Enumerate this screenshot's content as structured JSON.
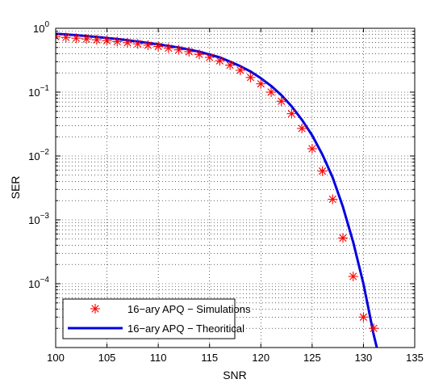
{
  "chart_data": {
    "type": "line",
    "title": "",
    "xlabel": "SNR",
    "ylabel": "SER",
    "xlim": [
      100,
      135
    ],
    "ylim": [
      1e-05,
      1
    ],
    "yscale": "log",
    "grid": true,
    "legend_position": "bottom-left",
    "x_ticks": [
      100,
      105,
      110,
      115,
      120,
      125,
      130,
      135
    ],
    "y_ticks": [
      {
        "value": 1,
        "base": "10",
        "exp": "0"
      },
      {
        "value": 0.1,
        "base": "10",
        "exp": "−1"
      },
      {
        "value": 0.01,
        "base": "10",
        "exp": "−2"
      },
      {
        "value": 0.001,
        "base": "10",
        "exp": "−3"
      },
      {
        "value": 0.0001,
        "base": "10",
        "exp": "−4"
      }
    ],
    "series": [
      {
        "name": "16−ary APQ − Simulations",
        "kind": "markers",
        "marker": "asterisk",
        "color": "#ff0000",
        "x": [
          100,
          101,
          102,
          103,
          104,
          105,
          106,
          107,
          108,
          109,
          110,
          111,
          112,
          113,
          114,
          115,
          116,
          117,
          118,
          119,
          120,
          121,
          122,
          123,
          124,
          125,
          126,
          127,
          128,
          129,
          130,
          131
        ],
        "y": [
          0.74,
          0.72,
          0.7,
          0.68,
          0.66,
          0.64,
          0.62,
          0.595,
          0.57,
          0.545,
          0.52,
          0.49,
          0.46,
          0.43,
          0.39,
          0.35,
          0.31,
          0.265,
          0.22,
          0.17,
          0.135,
          0.1,
          0.072,
          0.046,
          0.027,
          0.013,
          0.0058,
          0.0021,
          0.00052,
          0.00013,
          3e-05,
          2e-05
        ]
      },
      {
        "name": "16−ary APQ − Theoritical",
        "kind": "line",
        "color": "#0000e0",
        "x": [
          100,
          102,
          104,
          106,
          108,
          110,
          112,
          114,
          116,
          117,
          118,
          119,
          120,
          121,
          122,
          123,
          124,
          125,
          126,
          127,
          128,
          129,
          130,
          130.5,
          131,
          131.3
        ],
        "y": [
          0.82,
          0.78,
          0.73,
          0.68,
          0.62,
          0.56,
          0.5,
          0.43,
          0.35,
          0.3,
          0.255,
          0.21,
          0.165,
          0.125,
          0.09,
          0.06,
          0.037,
          0.021,
          0.0105,
          0.0046,
          0.0016,
          0.00045,
          0.0001,
          4e-05,
          1.6e-05,
          1e-05
        ]
      }
    ]
  }
}
